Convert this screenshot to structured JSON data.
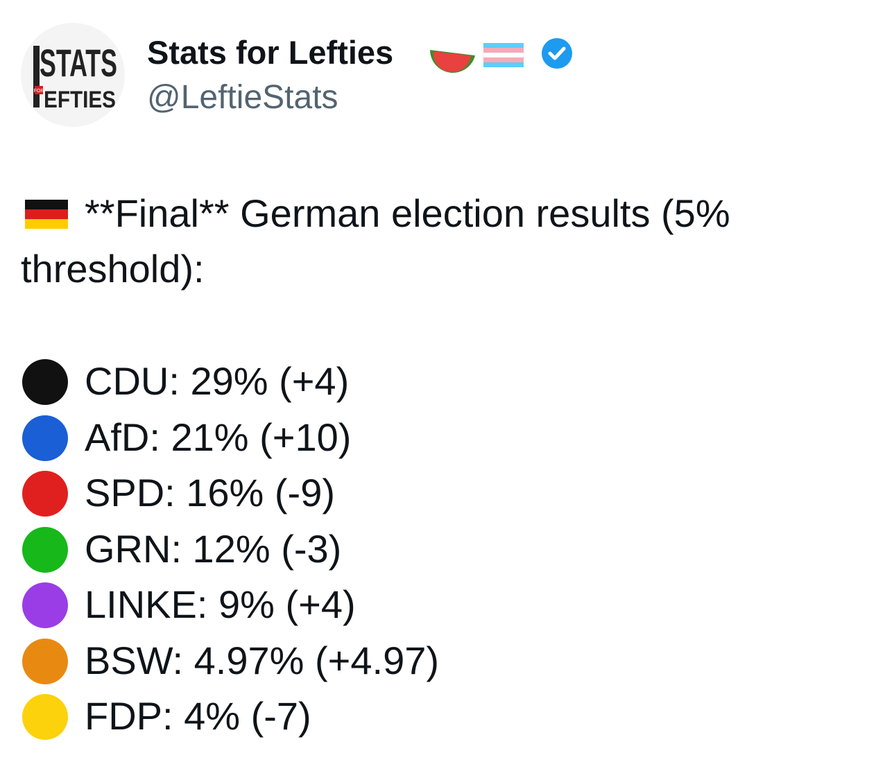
{
  "post": {
    "author": {
      "name": "Stats for Lefties",
      "handle": "@LeftieStats",
      "logo": {
        "top": "STATS",
        "small": "FOR",
        "bottom": "EFTIES"
      }
    },
    "text": "**Final** German election results (5% threshold):",
    "items": [
      {
        "text": "CDU: 29% (+4)",
        "color": "#111111"
      },
      {
        "text": "AfD: 21% (+10)",
        "color": "#1a5fd6"
      },
      {
        "text": "SPD: 16% (-9)",
        "color": "#e0201e"
      },
      {
        "text": "GRN: 12% (-3)",
        "color": "#17b81a"
      },
      {
        "text": "LINKE: 9% (+4)",
        "color": "#9a3de6"
      },
      {
        "text": "BSW: 4.97% (+4.97)",
        "color": "#e88a12"
      },
      {
        "text": "FDP: 4% (-7)",
        "color": "#fcd20c"
      }
    ]
  }
}
